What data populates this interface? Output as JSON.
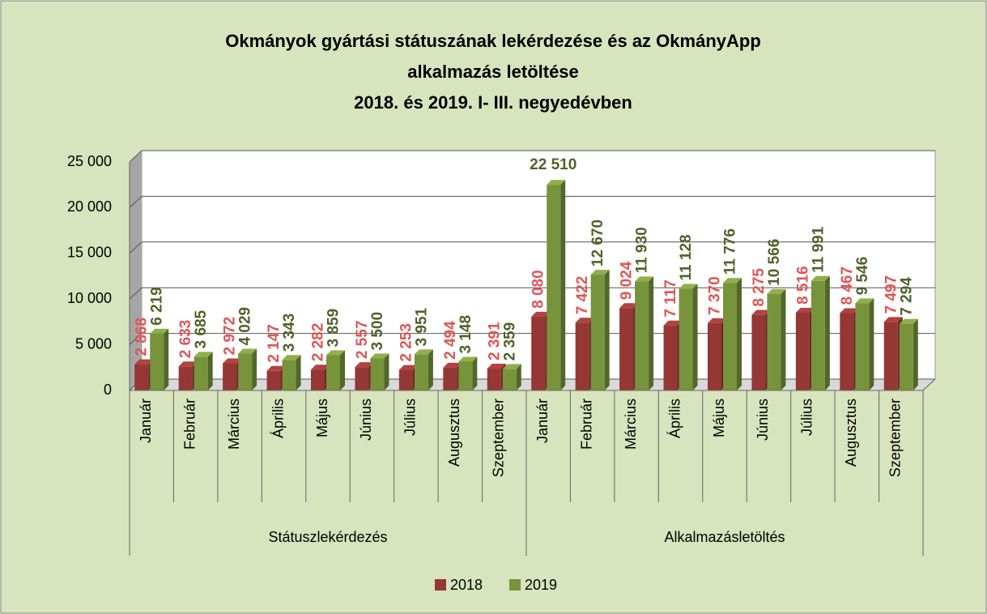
{
  "chart_data": {
    "type": "bar",
    "title": [
      "Okmányok gyártási státuszának lekérdezése és az OkmányApp",
      "alkalmazás letöltése",
      "2018. és 2019. I- III. negyedévben"
    ],
    "category_groups": [
      {
        "name": "Státuszlekérdezés",
        "categories": [
          "Január",
          "Február",
          "Március",
          "Április",
          "Május",
          "Június",
          "Július",
          "Augusztus",
          "Szeptember"
        ]
      },
      {
        "name": "Alkalmazásletöltés",
        "categories": [
          "Január",
          "Február",
          "Március",
          "Április",
          "Május",
          "Június",
          "Július",
          "Augusztus",
          "Szeptember"
        ]
      }
    ],
    "series": [
      {
        "name": "2018",
        "color": "#953735",
        "label_color": "#e05555",
        "values": [
          2868,
          2633,
          2972,
          2147,
          2282,
          2557,
          2253,
          2494,
          2391,
          8080,
          7422,
          9024,
          7117,
          7370,
          8275,
          8516,
          8467,
          7497
        ],
        "value_labels": [
          "2 868",
          "2 633",
          "2 972",
          "2 147",
          "2 282",
          "2 557",
          "2 253",
          "2 494",
          "2 391",
          "8 080",
          "7 422",
          "9 024",
          "7 117",
          "7 370",
          "8 275",
          "8 516",
          "8 467",
          "7 497"
        ]
      },
      {
        "name": "2019",
        "color": "#77933c",
        "label_color": "#4f6228",
        "values": [
          6219,
          3685,
          4029,
          3343,
          3859,
          3500,
          3951,
          3148,
          2359,
          22510,
          12670,
          11930,
          11128,
          11776,
          10566,
          11991,
          9546,
          7294
        ],
        "value_labels": [
          "6 219",
          "3 685",
          "4 029",
          "3 343",
          "3 859",
          "3 500",
          "3 951",
          "3 148",
          "2 359",
          "22 510",
          "12 670",
          "11 930",
          "11 128",
          "11 776",
          "10 566",
          "11 991",
          "9 546",
          "7 294"
        ]
      }
    ],
    "ylim": [
      0,
      25000
    ],
    "yticks": [
      0,
      {
        "value": 5000,
        "label": "5 000"
      },
      {
        "value": 10000,
        "label": "10 000"
      },
      {
        "value": 15000,
        "label": "15 000"
      },
      {
        "value": 20000,
        "label": "20 000"
      },
      {
        "value": 25000,
        "label": "25 000"
      }
    ],
    "grid": true,
    "legend": "bottom"
  }
}
